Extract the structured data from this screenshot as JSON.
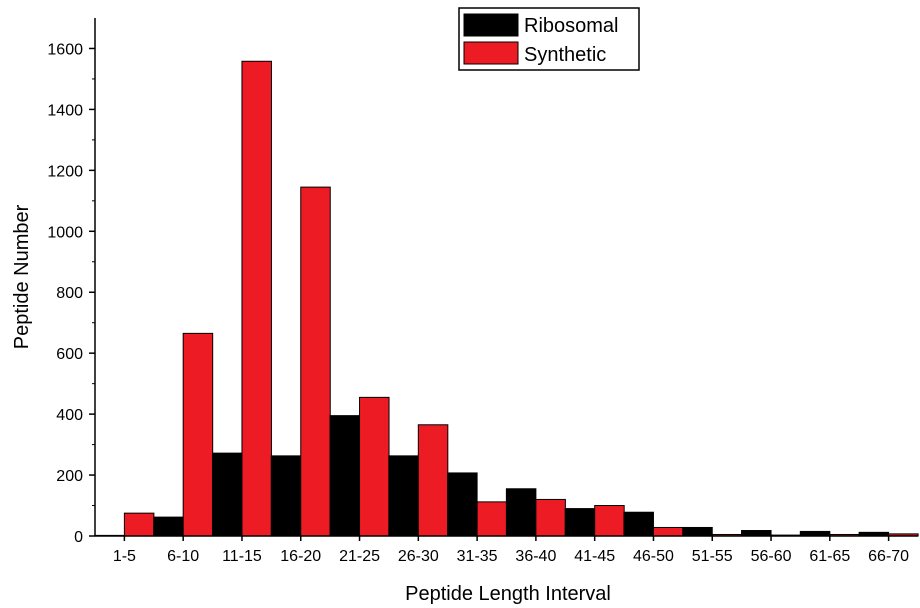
{
  "chart_data": {
    "type": "bar",
    "xlabel": "Peptide Length Interval",
    "ylabel": "Peptide Number",
    "ylim": [
      0,
      1700
    ],
    "yticks": [
      0,
      200,
      400,
      600,
      800,
      1000,
      1200,
      1400,
      1600
    ],
    "categories": [
      "1-5",
      "6-10",
      "11-15",
      "16-20",
      "21-25",
      "26-30",
      "31-35",
      "36-40",
      "41-45",
      "46-50",
      "51-55",
      "56-60",
      "61-65",
      "66-70"
    ],
    "series": [
      {
        "name": "Ribosomal",
        "color": "#000000",
        "values": [
          2,
          62,
          272,
          263,
          395,
          263,
          207,
          155,
          90,
          78,
          28,
          18,
          15,
          12
        ]
      },
      {
        "name": "Synthetic",
        "color": "#ed1c24",
        "values": [
          75,
          665,
          1558,
          1145,
          455,
          365,
          112,
          120,
          100,
          28,
          5,
          3,
          5,
          7
        ]
      }
    ],
    "legend_position": "top-center",
    "grid": false
  }
}
